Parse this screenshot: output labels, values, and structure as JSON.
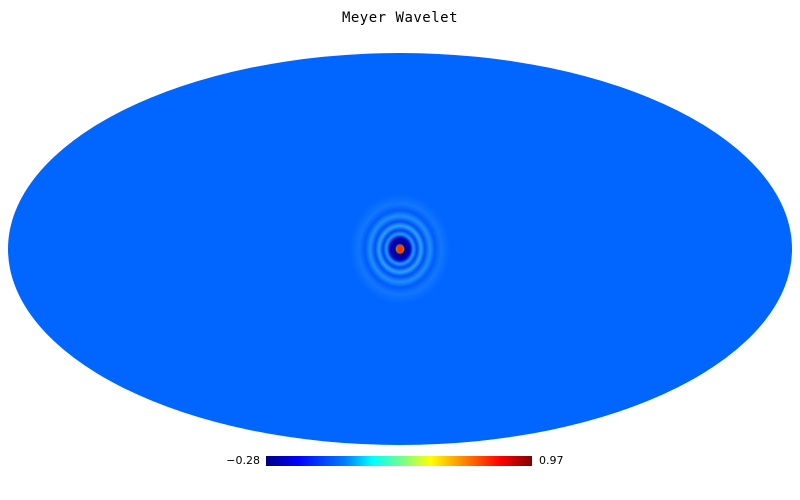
{
  "title": "Meyer Wavelet",
  "projection": "mollweide",
  "colormap": {
    "name": "jet",
    "min_label": "−0.28",
    "max_label": "0.97",
    "min": -0.28,
    "max": 0.97
  },
  "colors": {
    "background_field": "#0066ff",
    "peak_center": "#ff3300"
  }
}
